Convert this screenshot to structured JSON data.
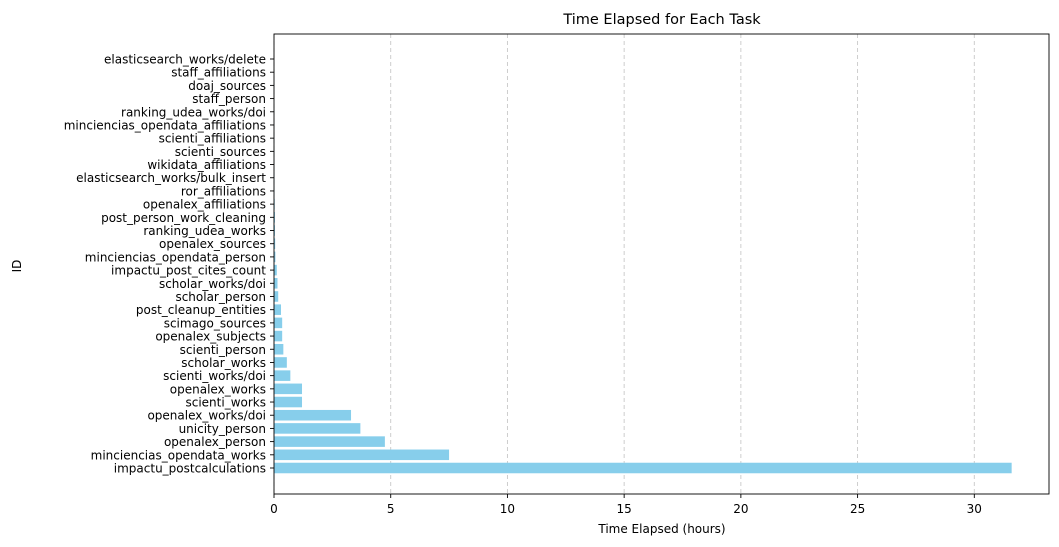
{
  "chart_data": {
    "type": "bar",
    "orientation": "horizontal",
    "title": "Time Elapsed for Each Task",
    "xlabel": "Time Elapsed (hours)",
    "ylabel": "ID",
    "xlim": [
      0,
      33.2
    ],
    "xticks": [
      0,
      5,
      10,
      15,
      20,
      25,
      30
    ],
    "grid": "x-dashed",
    "bar_color": "#87ceeb",
    "categories": [
      "impactu_postcalculations",
      "minciencias_opendata_works",
      "openalex_person",
      "unicity_person",
      "openalex_works/doi",
      "scienti_works",
      "openalex_works",
      "scienti_works/doi",
      "scholar_works",
      "scienti_person",
      "openalex_subjects",
      "scimago_sources",
      "post_cleanup_entities",
      "scholar_person",
      "scholar_works/doi",
      "impactu_post_cites_count",
      "minciencias_opendata_person",
      "openalex_sources",
      "ranking_udea_works",
      "post_person_work_cleaning",
      "openalex_affiliations",
      "ror_affiliations",
      "elasticsearch_works/bulk_insert",
      "wikidata_affiliations",
      "scienti_sources",
      "scienti_affiliations",
      "minciencias_opendata_affiliations",
      "ranking_udea_works/doi",
      "staff_person",
      "doaj_sources",
      "staff_affiliations",
      "elasticsearch_works/delete"
    ],
    "values": [
      31.6,
      7.5,
      4.75,
      3.7,
      3.3,
      1.2,
      1.2,
      0.7,
      0.55,
      0.4,
      0.35,
      0.35,
      0.3,
      0.18,
      0.15,
      0.12,
      0.06,
      0.05,
      0.04,
      0.04,
      0.03,
      0.02,
      0.02,
      0.01,
      0.01,
      0.01,
      0.01,
      0.01,
      0.005,
      0.005,
      0.005,
      0.002
    ]
  }
}
